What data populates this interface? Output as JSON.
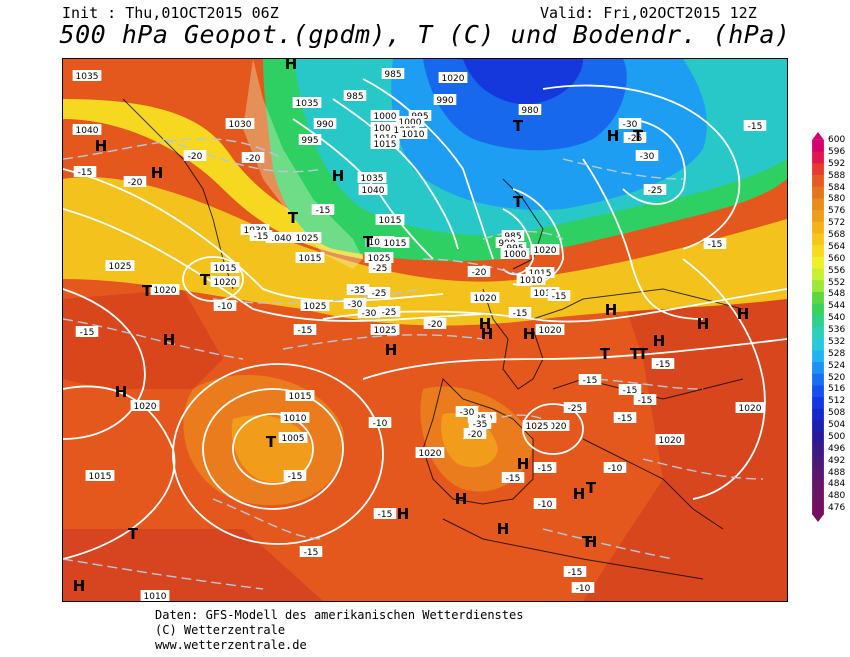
{
  "header": {
    "init": "Init : Thu,01OCT2015 06Z",
    "valid": "Valid: Fri,02OCT2015 12Z",
    "title": "500 hPa Geopot.(gpdm), T (C) und Bodendr. (hPa)"
  },
  "legend": {
    "values": [
      "600",
      "596",
      "592",
      "588",
      "584",
      "580",
      "576",
      "572",
      "568",
      "564",
      "560",
      "556",
      "552",
      "548",
      "544",
      "540",
      "536",
      "532",
      "528",
      "524",
      "520",
      "516",
      "512",
      "508",
      "504",
      "500",
      "496",
      "492",
      "488",
      "484",
      "480",
      "476"
    ],
    "colors": [
      "#d4006e",
      "#e0174f",
      "#e83a2e",
      "#e65a24",
      "#e2761f",
      "#e88c1c",
      "#ee9e1a",
      "#f4b31a",
      "#f7c61b",
      "#f6da1f",
      "#eef02a",
      "#c8f030",
      "#9be838",
      "#5cd83e",
      "#3ad25a",
      "#2ed08c",
      "#2ad0b8",
      "#28c8dc",
      "#22b4f0",
      "#1c92f2",
      "#1870f0",
      "#1450ec",
      "#1436e4",
      "#1428cc",
      "#1c20b0",
      "#2a1c98",
      "#3a1a84",
      "#4a1a78",
      "#58186e",
      "#641668",
      "#6c1464",
      "#720f5e"
    ]
  },
  "pressure_labels": [
    "1035",
    "1040",
    "1030",
    "1040",
    "1035",
    "1030",
    "1025",
    "1015",
    "1020",
    "1020",
    "1025",
    "1015",
    "1010",
    "1005",
    "1020",
    "1015",
    "1025",
    "1020",
    "1025",
    "1015",
    "1010",
    "1020",
    "1025",
    "1020",
    "1020",
    "1015",
    "1020",
    "1020",
    "1025",
    "1020",
    "1015",
    "985",
    "990",
    "995",
    "985",
    "1000",
    "1005",
    "1010",
    "1015",
    "1020",
    "1025",
    "1035",
    "1040",
    "1015",
    "1020",
    "990",
    "995",
    "1000",
    "1005",
    "1010",
    "1015",
    "980",
    "985",
    "990",
    "995",
    "1000",
    "1020",
    "1010"
  ],
  "temp_labels": [
    "-15",
    "-20",
    "-20",
    "-15",
    "-15",
    "-25",
    "-20",
    "-35",
    "-30",
    "-25",
    "-30",
    "-25",
    "-20",
    "-20",
    "-15",
    "-15",
    "-15",
    "-15",
    "-15",
    "-15",
    "-20",
    "-25",
    "-15",
    "-15",
    "-15",
    "-15",
    "-10",
    "-10",
    "-15",
    "-10",
    "-15",
    "-15",
    "-20",
    "-25",
    "-30",
    "-35",
    "-30",
    "-25",
    "-30",
    "-15",
    "-25",
    "-15",
    "-15",
    "-10",
    "-10",
    "-15"
  ],
  "pressure_centers": [
    "H",
    "H",
    "H",
    "T",
    "H",
    "T",
    "H",
    "H",
    "H",
    "H",
    "H",
    "H",
    "H",
    "T",
    "T",
    "H",
    "T",
    "H",
    "H",
    "H",
    "T",
    "H",
    "H",
    "H",
    "T",
    "T",
    "H",
    "T",
    "H",
    "H",
    "T",
    "H",
    "T",
    "T",
    "T",
    "T"
  ],
  "credits": {
    "line1": "Daten: GFS-Modell des amerikanischen Wetterdienstes",
    "line2": "(C) Wetterzentrale",
    "line3": "www.wetterzentrale.de"
  }
}
